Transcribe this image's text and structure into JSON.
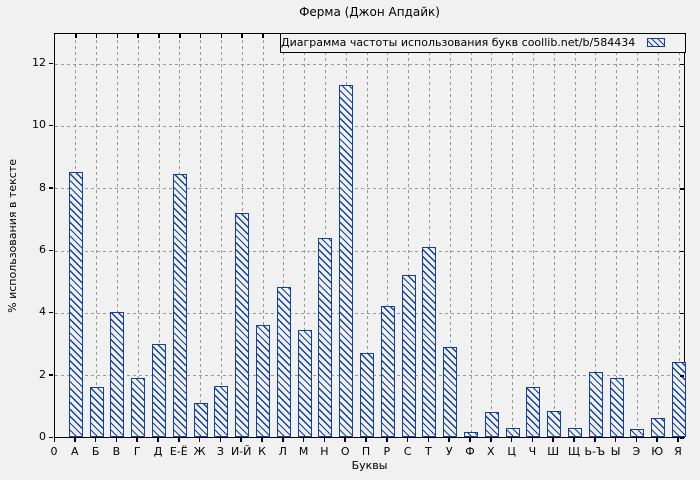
{
  "window_title": "Ферма (Джон Апдайк)",
  "colors": {
    "bar": "#1040a0",
    "grid": "#999999",
    "background": "#f1f1f1",
    "axis": "#000000"
  },
  "chart_data": {
    "type": "bar",
    "title": "Ферма (Джон Апдайк)",
    "legend": "Диаграмма частоты использования букв coollib.net/b/584434",
    "legend_position": "top-right",
    "legend_swatch": "blue-hatched-box",
    "xlabel": "Буквы",
    "ylabel": "% использования в тексте",
    "origin_label": "0",
    "grid": true,
    "ylim": [
      0,
      13
    ],
    "y_ticks": [
      0,
      2,
      4,
      6,
      8,
      10,
      12
    ],
    "categories": [
      "А",
      "Б",
      "В",
      "Г",
      "Д",
      "Е-Ё",
      "Ж",
      "З",
      "И-Й",
      "К",
      "Л",
      "М",
      "Н",
      "О",
      "П",
      "Р",
      "С",
      "Т",
      "У",
      "Ф",
      "Х",
      "Ц",
      "Ч",
      "Ш",
      "Щ",
      "Ь-Ъ",
      "Ы",
      "Э",
      "Ю",
      "Я"
    ],
    "values": [
      8.5,
      1.6,
      4.0,
      1.9,
      3.0,
      8.45,
      1.1,
      1.65,
      7.2,
      3.6,
      4.8,
      3.45,
      6.4,
      11.3,
      2.7,
      4.2,
      5.2,
      6.1,
      2.9,
      0.15,
      0.8,
      0.3,
      1.6,
      0.85,
      0.3,
      2.1,
      1.9,
      0.25,
      0.6,
      2.4
    ]
  }
}
